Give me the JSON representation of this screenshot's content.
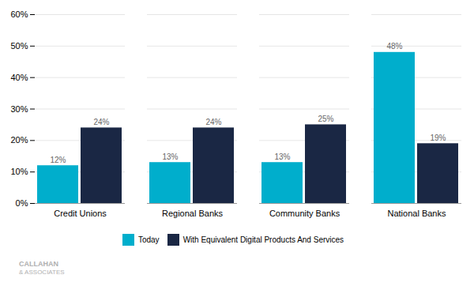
{
  "chart_data": {
    "type": "bar",
    "categories": [
      "Credit Unions",
      "Regional Banks",
      "Community Banks",
      "National Banks"
    ],
    "series": [
      {
        "name": "Today",
        "color": "#00AECC",
        "values": [
          12,
          13,
          13,
          48
        ],
        "value_labels": [
          "12%",
          "13%",
          "13%",
          "48%"
        ]
      },
      {
        "name": "With Equivalent Digital Products And Services",
        "color": "#1A2744",
        "values": [
          24,
          24,
          25,
          19
        ],
        "value_labels": [
          "24%",
          "24%",
          "25%",
          "19%"
        ]
      }
    ],
    "ylim": [
      0,
      60
    ],
    "yticks": [
      {
        "value": 0,
        "label": "0%"
      },
      {
        "value": 10,
        "label": "10%"
      },
      {
        "value": 20,
        "label": "20%"
      },
      {
        "value": 30,
        "label": "30%"
      },
      {
        "value": 40,
        "label": "40%"
      },
      {
        "value": 50,
        "label": "50%"
      },
      {
        "value": 60,
        "label": "60%"
      }
    ],
    "grid": true,
    "data_labels": true,
    "legend": "bottom",
    "annotations": [
      "CALLAHAN",
      "& ASSOCIATES"
    ]
  }
}
